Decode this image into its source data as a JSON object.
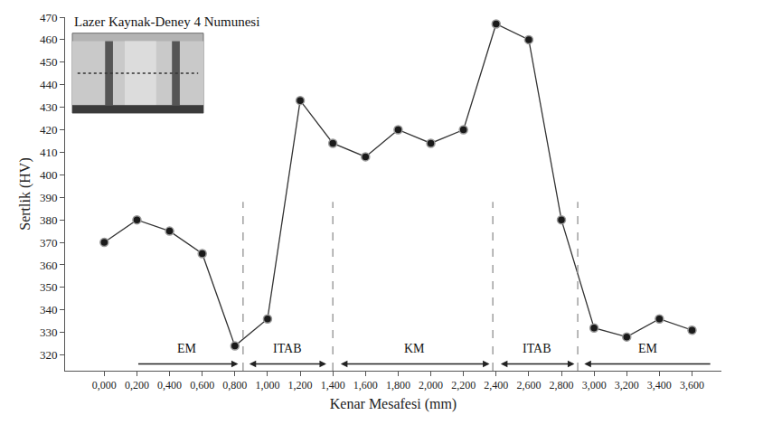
{
  "chart_data": {
    "type": "line",
    "inset_title": "Lazer Kaynak-Deney 4 Numunesi",
    "x_label": "Kenar Mesafesi (mm)",
    "y_label": "Sertlik (HV)",
    "x": [
      0,
      0.2,
      0.4,
      0.6,
      0.8,
      1.0,
      1.2,
      1.4,
      1.6,
      1.8,
      2.0,
      2.2,
      2.4,
      2.6,
      2.8,
      3.0,
      3.2,
      3.4,
      3.6
    ],
    "values": [
      370,
      380,
      375,
      365,
      324,
      336,
      433,
      414,
      408,
      420,
      414,
      420,
      467,
      460,
      380,
      332,
      328,
      336,
      331
    ],
    "color": "#333333",
    "marker": "circle",
    "line_style": "solid",
    "grid": false,
    "xlim": [
      -0.24,
      3.78
    ],
    "xticks": [
      {
        "value": 0,
        "label": "0,000"
      },
      {
        "value": 0.2,
        "label": "0,200"
      },
      {
        "value": 0.4,
        "label": "0,400"
      },
      {
        "value": 0.6,
        "label": "0,600"
      },
      {
        "value": 0.8,
        "label": "0,800"
      },
      {
        "value": 1.0,
        "label": "1,000"
      },
      {
        "value": 1.2,
        "label": "1,200"
      },
      {
        "value": 1.4,
        "label": "1,400"
      },
      {
        "value": 1.6,
        "label": "1,600"
      },
      {
        "value": 1.8,
        "label": "1,800"
      },
      {
        "value": 2.0,
        "label": "2,000"
      },
      {
        "value": 2.2,
        "label": "2,200"
      },
      {
        "value": 2.4,
        "label": "2,400"
      },
      {
        "value": 2.6,
        "label": "2,600"
      },
      {
        "value": 2.8,
        "label": "2,800"
      },
      {
        "value": 3.0,
        "label": "3,000"
      },
      {
        "value": 3.2,
        "label": "3,200"
      },
      {
        "value": 3.4,
        "label": "3,400"
      },
      {
        "value": 3.6,
        "label": "3,600"
      }
    ],
    "ylim": [
      313,
      470
    ],
    "yticks": [
      320,
      330,
      340,
      350,
      360,
      370,
      380,
      390,
      400,
      410,
      420,
      430,
      440,
      450,
      460,
      470
    ],
    "boundaries": [
      0.85,
      1.4,
      2.38,
      2.9
    ],
    "boundary_top": 388,
    "zone_arrow_y": 316,
    "zone_label_y": 323,
    "zones": [
      {
        "label": "EM",
        "from": 0.2,
        "to": 0.82,
        "arrow": "single"
      },
      {
        "label": "ITAB",
        "from": 0.88,
        "to": 1.36,
        "arrow": "double"
      },
      {
        "label": "KM",
        "from": 1.44,
        "to": 2.36,
        "arrow": "double"
      },
      {
        "label": "ITAB",
        "from": 2.42,
        "to": 2.88,
        "arrow": "double"
      },
      {
        "label": "EM",
        "from": 3.72,
        "to": 2.94,
        "arrow": "single"
      }
    ]
  }
}
